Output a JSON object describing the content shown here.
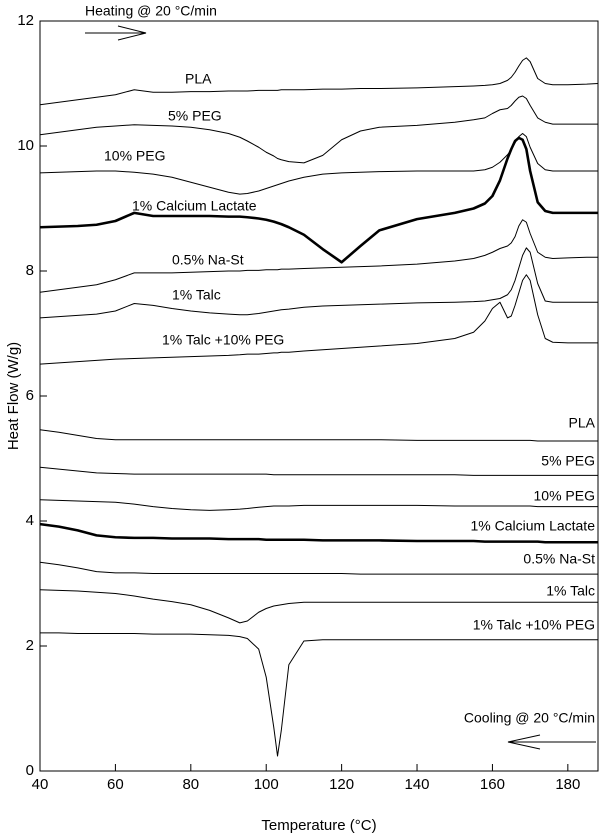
{
  "chart_data": {
    "type": "line",
    "x_label": "Temperature (°C)",
    "y_label": "Heat Flow (W/g)",
    "annotations": [
      "Heating @ 20 °C/min",
      "Cooling @ 20 °C/min"
    ],
    "xlim": [
      40,
      188
    ],
    "ylim": [
      0,
      12
    ],
    "xticks": [
      40,
      60,
      80,
      100,
      120,
      140,
      160,
      180
    ],
    "yticks": [
      0,
      2,
      4,
      6,
      8,
      10,
      12
    ],
    "x": [
      40,
      45,
      50,
      55,
      60,
      65,
      70,
      75,
      80,
      85,
      90,
      93,
      95,
      98,
      100,
      102,
      103,
      104,
      106,
      110,
      115,
      120,
      125,
      130,
      140,
      150,
      155,
      158,
      160,
      162,
      164,
      165,
      166,
      167,
      168,
      169,
      170,
      172,
      174,
      176,
      180,
      185,
      188
    ],
    "series": [
      {
        "name": "PLA",
        "color": "#000000",
        "line_width": 1,
        "values": [
          10.66,
          10.7,
          10.74,
          10.78,
          10.82,
          10.9,
          10.86,
          10.86,
          10.87,
          10.87,
          10.88,
          10.88,
          10.88,
          10.89,
          10.89,
          10.89,
          10.89,
          10.9,
          10.9,
          10.9,
          10.91,
          10.91,
          10.92,
          10.92,
          10.93,
          10.95,
          10.96,
          10.97,
          10.98,
          11.0,
          11.05,
          11.1,
          11.18,
          11.28,
          11.37,
          11.41,
          11.35,
          11.08,
          11.0,
          10.98,
          10.98,
          10.99,
          11.0
        ]
      },
      {
        "name": "5% PEG",
        "color": "#000000",
        "line_width": 1,
        "values": [
          10.18,
          10.22,
          10.26,
          10.3,
          10.32,
          10.34,
          10.33,
          10.32,
          10.3,
          10.26,
          10.2,
          10.14,
          10.08,
          9.98,
          9.9,
          9.84,
          9.8,
          9.78,
          9.75,
          9.73,
          9.85,
          10.1,
          10.24,
          10.3,
          10.33,
          10.38,
          10.42,
          10.45,
          10.52,
          10.58,
          10.6,
          10.65,
          10.72,
          10.78,
          10.8,
          10.76,
          10.65,
          10.45,
          10.38,
          10.35,
          10.35,
          10.35,
          10.35
        ]
      },
      {
        "name": "10% PEG",
        "color": "#000000",
        "line_width": 1,
        "values": [
          9.57,
          9.58,
          9.59,
          9.6,
          9.6,
          9.58,
          9.55,
          9.5,
          9.42,
          9.34,
          9.26,
          9.23,
          9.24,
          9.28,
          9.32,
          9.36,
          9.38,
          9.4,
          9.44,
          9.5,
          9.55,
          9.57,
          9.58,
          9.59,
          9.6,
          9.6,
          9.6,
          9.62,
          9.66,
          9.74,
          9.86,
          9.94,
          10.05,
          10.15,
          10.2,
          10.15,
          9.98,
          9.72,
          9.62,
          9.6,
          9.6,
          9.6,
          9.6
        ]
      },
      {
        "name": "1% Calcium Lactate",
        "color": "#000000",
        "line_width": 2.6,
        "values": [
          8.7,
          8.71,
          8.72,
          8.74,
          8.8,
          8.93,
          8.88,
          8.88,
          8.88,
          8.88,
          8.87,
          8.87,
          8.86,
          8.84,
          8.82,
          8.79,
          8.77,
          8.75,
          8.7,
          8.58,
          8.35,
          8.14,
          8.4,
          8.65,
          8.83,
          8.93,
          9.0,
          9.08,
          9.2,
          9.45,
          9.8,
          9.95,
          10.08,
          10.13,
          10.1,
          9.95,
          9.6,
          9.1,
          8.96,
          8.93,
          8.93,
          8.93,
          8.93
        ]
      },
      {
        "name": "0.5% Na-St",
        "color": "#000000",
        "line_width": 1,
        "values": [
          7.66,
          7.7,
          7.74,
          7.78,
          7.86,
          7.97,
          7.97,
          7.97,
          7.98,
          7.99,
          8.0,
          8.0,
          8.01,
          8.01,
          8.02,
          8.02,
          8.02,
          8.03,
          8.03,
          8.04,
          8.05,
          8.06,
          8.07,
          8.08,
          8.11,
          8.16,
          8.2,
          8.25,
          8.3,
          8.36,
          8.4,
          8.45,
          8.55,
          8.72,
          8.82,
          8.78,
          8.6,
          8.3,
          8.22,
          8.2,
          8.21,
          8.22,
          8.22
        ]
      },
      {
        "name": "1% Talc",
        "color": "#000000",
        "line_width": 1,
        "values": [
          7.25,
          7.27,
          7.29,
          7.31,
          7.36,
          7.48,
          7.45,
          7.4,
          7.36,
          7.33,
          7.31,
          7.3,
          7.3,
          7.32,
          7.34,
          7.36,
          7.37,
          7.38,
          7.39,
          7.42,
          7.44,
          7.45,
          7.46,
          7.47,
          7.49,
          7.5,
          7.51,
          7.52,
          7.54,
          7.56,
          7.62,
          7.7,
          7.85,
          8.05,
          8.25,
          8.37,
          8.3,
          7.8,
          7.52,
          7.5,
          7.5,
          7.5,
          7.5
        ]
      },
      {
        "name": "1% Talc +10% PEG",
        "color": "#000000",
        "line_width": 1,
        "values": [
          6.51,
          6.53,
          6.55,
          6.57,
          6.59,
          6.6,
          6.61,
          6.62,
          6.63,
          6.64,
          6.65,
          6.66,
          6.67,
          6.67,
          6.68,
          6.69,
          6.69,
          6.7,
          6.7,
          6.72,
          6.74,
          6.76,
          6.78,
          6.8,
          6.84,
          6.92,
          7.02,
          7.2,
          7.4,
          7.5,
          7.25,
          7.28,
          7.45,
          7.65,
          7.85,
          7.94,
          7.85,
          7.3,
          6.92,
          6.86,
          6.85,
          6.85,
          6.85
        ]
      },
      {
        "name": "PLA",
        "color": "#000000",
        "line_width": 1,
        "values": [
          5.46,
          5.42,
          5.37,
          5.32,
          5.3,
          5.3,
          5.3,
          5.3,
          5.3,
          5.3,
          5.3,
          5.3,
          5.3,
          5.3,
          5.3,
          5.3,
          5.3,
          5.3,
          5.3,
          5.3,
          5.3,
          5.3,
          5.3,
          5.3,
          5.29,
          5.29,
          5.29,
          5.29,
          5.29,
          5.29,
          5.29,
          5.29,
          5.29,
          5.29,
          5.29,
          5.29,
          5.29,
          5.28,
          5.28,
          5.28,
          5.28,
          5.28,
          5.28
        ]
      },
      {
        "name": "5% PEG",
        "color": "#000000",
        "line_width": 1,
        "values": [
          4.86,
          4.83,
          4.8,
          4.77,
          4.76,
          4.75,
          4.75,
          4.75,
          4.75,
          4.75,
          4.75,
          4.75,
          4.75,
          4.75,
          4.75,
          4.74,
          4.74,
          4.74,
          4.74,
          4.74,
          4.74,
          4.74,
          4.74,
          4.74,
          4.74,
          4.74,
          4.73,
          4.73,
          4.73,
          4.73,
          4.73,
          4.73,
          4.73,
          4.73,
          4.73,
          4.73,
          4.73,
          4.73,
          4.73,
          4.73,
          4.73,
          4.73,
          4.73
        ]
      },
      {
        "name": "10% PEG",
        "color": "#000000",
        "line_width": 1,
        "values": [
          4.34,
          4.33,
          4.32,
          4.31,
          4.3,
          4.27,
          4.23,
          4.2,
          4.18,
          4.17,
          4.18,
          4.19,
          4.2,
          4.22,
          4.23,
          4.24,
          4.24,
          4.24,
          4.24,
          4.25,
          4.25,
          4.25,
          4.25,
          4.25,
          4.25,
          4.24,
          4.24,
          4.24,
          4.24,
          4.24,
          4.24,
          4.24,
          4.24,
          4.24,
          4.24,
          4.24,
          4.24,
          4.23,
          4.23,
          4.23,
          4.23,
          4.23,
          4.23
        ]
      },
      {
        "name": "1% Calcium Lactate",
        "color": "#000000",
        "line_width": 2.6,
        "values": [
          3.95,
          3.91,
          3.85,
          3.77,
          3.74,
          3.73,
          3.73,
          3.72,
          3.72,
          3.72,
          3.71,
          3.71,
          3.71,
          3.71,
          3.7,
          3.7,
          3.7,
          3.7,
          3.7,
          3.7,
          3.69,
          3.69,
          3.69,
          3.69,
          3.68,
          3.68,
          3.68,
          3.67,
          3.67,
          3.67,
          3.67,
          3.67,
          3.67,
          3.67,
          3.67,
          3.67,
          3.67,
          3.67,
          3.66,
          3.66,
          3.66,
          3.66,
          3.66
        ]
      },
      {
        "name": "0.5% Na-St",
        "color": "#000000",
        "line_width": 1,
        "values": [
          3.34,
          3.3,
          3.25,
          3.19,
          3.17,
          3.17,
          3.16,
          3.16,
          3.16,
          3.16,
          3.16,
          3.16,
          3.16,
          3.16,
          3.16,
          3.16,
          3.16,
          3.16,
          3.16,
          3.16,
          3.16,
          3.16,
          3.15,
          3.15,
          3.15,
          3.15,
          3.15,
          3.15,
          3.15,
          3.15,
          3.15,
          3.15,
          3.15,
          3.15,
          3.15,
          3.15,
          3.15,
          3.15,
          3.15,
          3.15,
          3.15,
          3.15,
          3.15
        ]
      },
      {
        "name": "1% Talc",
        "color": "#000000",
        "line_width": 1,
        "values": [
          2.9,
          2.89,
          2.88,
          2.86,
          2.84,
          2.8,
          2.75,
          2.71,
          2.66,
          2.57,
          2.45,
          2.37,
          2.4,
          2.54,
          2.6,
          2.64,
          2.65,
          2.66,
          2.68,
          2.7,
          2.7,
          2.7,
          2.7,
          2.7,
          2.7,
          2.7,
          2.7,
          2.7,
          2.7,
          2.7,
          2.7,
          2.7,
          2.7,
          2.7,
          2.7,
          2.7,
          2.7,
          2.7,
          2.7,
          2.7,
          2.7,
          2.7,
          2.7
        ]
      },
      {
        "name": "1% Talc +10% PEG",
        "color": "#000000",
        "line_width": 1,
        "values": [
          2.21,
          2.21,
          2.2,
          2.2,
          2.2,
          2.2,
          2.19,
          2.19,
          2.19,
          2.18,
          2.17,
          2.15,
          2.12,
          1.95,
          1.5,
          0.7,
          0.24,
          0.65,
          1.7,
          2.08,
          2.1,
          2.1,
          2.1,
          2.1,
          2.1,
          2.1,
          2.1,
          2.1,
          2.1,
          2.1,
          2.1,
          2.1,
          2.1,
          2.1,
          2.1,
          2.1,
          2.1,
          2.1,
          2.1,
          2.1,
          2.1,
          2.1,
          2.1
        ]
      }
    ]
  }
}
